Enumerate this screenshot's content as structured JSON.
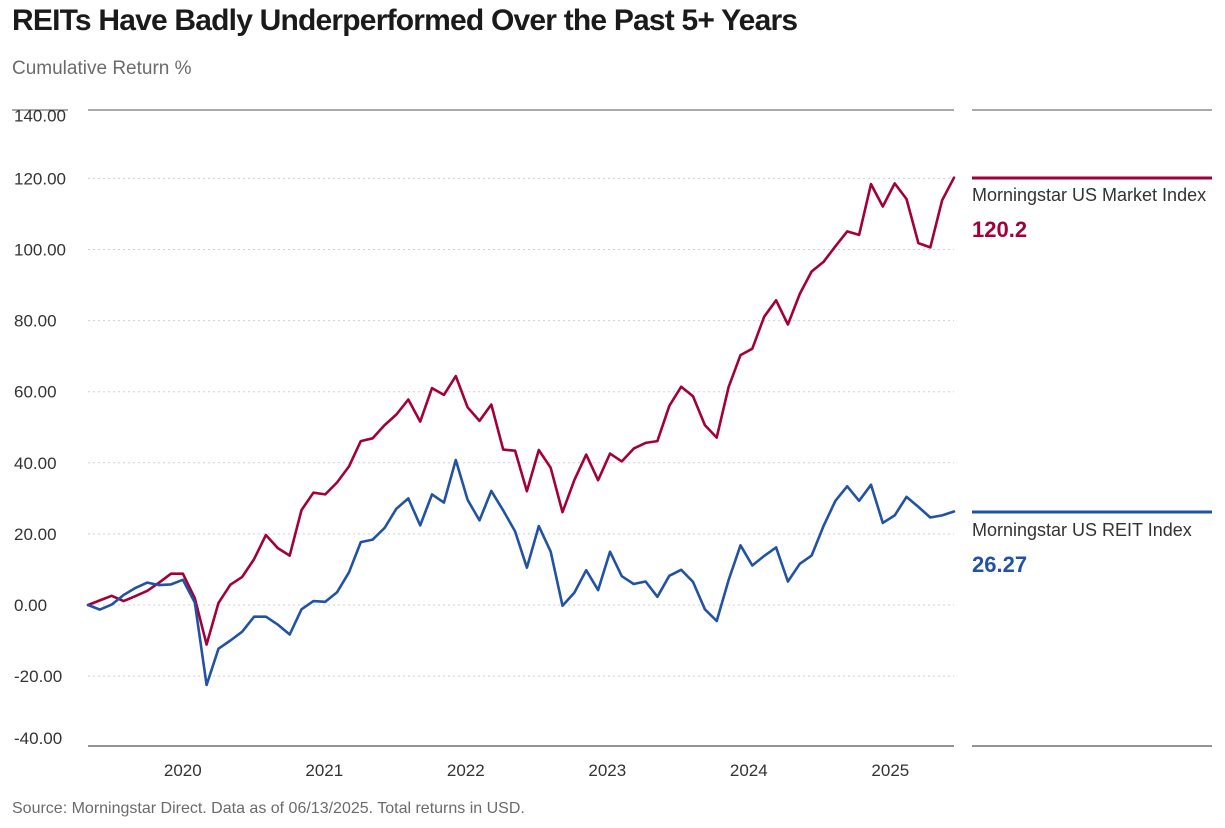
{
  "chart_data": {
    "type": "line",
    "title": "REITs Have Badly Underperformed Over the Past 5+ Years",
    "subtitle": "Cumulative Return %",
    "source": "Source: Morningstar Direct. Data as of 06/13/2025. Total returns in USD.",
    "ylim": [
      -40,
      140
    ],
    "y_ticks": [
      -40,
      -20,
      0,
      20,
      40,
      60,
      80,
      100,
      120,
      140
    ],
    "y_tick_labels": [
      "-40.00",
      "-20.00",
      "0.00",
      "20.00",
      "40.00",
      "60.00",
      "80.00",
      "100.00",
      "120.00",
      "140.00"
    ],
    "x_start": 2019.33,
    "x_end": 2025.45,
    "x_ticks": [
      2020,
      2021,
      2022,
      2023,
      2024,
      2025
    ],
    "x_tick_labels": [
      "2020",
      "2021",
      "2022",
      "2023",
      "2024",
      "2025"
    ],
    "grid": true,
    "series": [
      {
        "name": "Morningstar US Market Index",
        "color": "#a3003a",
        "end_label": "120.2",
        "values": [
          0,
          1.3,
          2.6,
          1.1,
          2.5,
          4.0,
          6.3,
          8.8,
          8.8,
          1.9,
          -11.1,
          0.6,
          5.7,
          7.9,
          12.9,
          19.7,
          16.0,
          13.9,
          26.7,
          31.6,
          31.1,
          34.5,
          39.0,
          46.1,
          46.9,
          50.6,
          53.6,
          57.8,
          51.6,
          61.0,
          59.1,
          64.4,
          55.6,
          51.8,
          56.4,
          43.7,
          43.4,
          32.0,
          43.6,
          38.6,
          26.1,
          35.2,
          42.3,
          35.1,
          42.6,
          40.4,
          44.0,
          45.6,
          46.1,
          56.0,
          61.4,
          58.7,
          50.6,
          47.1,
          61.3,
          70.3,
          72.1,
          81.1,
          85.7,
          78.9,
          87.5,
          93.8,
          96.5,
          100.9,
          105.1,
          104.1,
          118.4,
          112.1,
          118.6,
          114.2,
          101.8,
          100.6,
          113.8,
          120.2
        ]
      },
      {
        "name": "Morningstar US REIT Index",
        "color": "#2152a3",
        "end_label": "26.27",
        "values": [
          0,
          -1.3,
          0.1,
          2.8,
          4.8,
          6.3,
          5.6,
          5.8,
          7.1,
          0.7,
          -22.5,
          -12.3,
          -10.0,
          -7.5,
          -3.3,
          -3.3,
          -5.5,
          -8.3,
          -1.2,
          1.1,
          0.9,
          3.6,
          9.2,
          17.7,
          18.4,
          21.7,
          27.1,
          30.0,
          22.4,
          31.1,
          28.8,
          40.8,
          29.6,
          23.8,
          32.1,
          26.6,
          20.7,
          10.5,
          22.2,
          15.0,
          -0.2,
          3.5,
          9.8,
          4.2,
          15.0,
          8.1,
          5.9,
          6.6,
          2.3,
          8.2,
          9.9,
          6.5,
          -1.2,
          -4.5,
          7.0,
          16.8,
          11.1,
          13.8,
          16.2,
          6.6,
          11.6,
          13.9,
          22.2,
          29.3,
          33.4,
          29.3,
          33.8,
          23.1,
          25.2,
          30.4,
          27.6,
          24.6,
          25.2,
          26.3
        ]
      }
    ]
  }
}
